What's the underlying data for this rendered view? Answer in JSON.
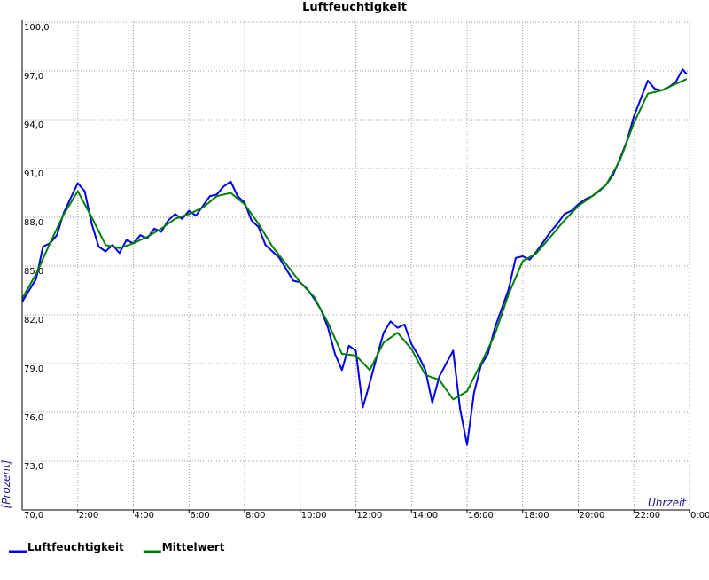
{
  "chart_data": {
    "type": "line",
    "title": "Luftfeuchtigkeit",
    "y_label": "[Prozent]",
    "x_label": "Uhrzeit",
    "xlim": [
      0,
      24
    ],
    "xticks": [
      {
        "value": 2,
        "label": "2:00"
      },
      {
        "value": 4,
        "label": "4:00"
      },
      {
        "value": 6,
        "label": "6:00"
      },
      {
        "value": 8,
        "label": "8:00"
      },
      {
        "value": 10,
        "label": "10:00"
      },
      {
        "value": 12,
        "label": "12:00"
      },
      {
        "value": 14,
        "label": "14:00"
      },
      {
        "value": 16,
        "label": "16:00"
      },
      {
        "value": 18,
        "label": "18:00"
      },
      {
        "value": 20,
        "label": "20:00"
      },
      {
        "value": 22,
        "label": "22:00"
      },
      {
        "value": 24,
        "label": "0:00"
      }
    ],
    "ylim": [
      70,
      100
    ],
    "yticks": [
      {
        "value": 70,
        "label": "70,0"
      },
      {
        "value": 73,
        "label": "73,0"
      },
      {
        "value": 76,
        "label": "76,0"
      },
      {
        "value": 79,
        "label": "79,0"
      },
      {
        "value": 82,
        "label": "82,0"
      },
      {
        "value": 85,
        "label": "85,0"
      },
      {
        "value": 88,
        "label": "88,0"
      },
      {
        "value": 91,
        "label": "91,0"
      },
      {
        "value": 94,
        "label": "94,0"
      },
      {
        "value": 97,
        "label": "97,0"
      },
      {
        "value": 100,
        "label": "100,0"
      }
    ],
    "grid": true,
    "legend": "bottom",
    "series": [
      {
        "name": "Luftfeuchtigkeit",
        "color": "#0000ee",
        "x": [
          0,
          0.25,
          0.5,
          0.75,
          1,
          1.25,
          1.5,
          1.75,
          2,
          2.25,
          2.5,
          2.75,
          3,
          3.25,
          3.5,
          3.75,
          4,
          4.25,
          4.5,
          4.75,
          5,
          5.25,
          5.5,
          5.75,
          6,
          6.25,
          6.5,
          6.75,
          7,
          7.25,
          7.5,
          7.75,
          8,
          8.25,
          8.5,
          8.75,
          9,
          9.25,
          9.5,
          9.75,
          10,
          10.25,
          10.5,
          10.75,
          11,
          11.25,
          11.5,
          11.75,
          12,
          12.25,
          12.5,
          12.75,
          13,
          13.25,
          13.5,
          13.75,
          14,
          14.25,
          14.5,
          14.75,
          15,
          15.25,
          15.5,
          15.75,
          16,
          16.25,
          16.5,
          16.75,
          17,
          17.25,
          17.5,
          17.75,
          18,
          18.25,
          18.5,
          18.75,
          19,
          19.25,
          19.5,
          19.75,
          20,
          20.25,
          20.5,
          20.75,
          21,
          21.25,
          21.5,
          21.75,
          22,
          22.25,
          22.5,
          22.75,
          23,
          23.25,
          23.5,
          23.75,
          23.9
        ],
        "values": [
          82.8,
          83.5,
          84.2,
          86.2,
          86.4,
          86.9,
          88.3,
          89.2,
          90.1,
          89.6,
          87.6,
          86.2,
          85.9,
          86.3,
          85.8,
          86.6,
          86.4,
          86.9,
          86.7,
          87.3,
          87.1,
          87.8,
          88.2,
          87.9,
          88.4,
          88.1,
          88.7,
          89.3,
          89.4,
          89.9,
          90.2,
          89.3,
          88.9,
          87.8,
          87.4,
          86.3,
          85.9,
          85.5,
          84.8,
          84.1,
          84.0,
          83.6,
          83.0,
          82.3,
          81.2,
          79.6,
          78.6,
          80.1,
          79.8,
          76.3,
          77.8,
          79.4,
          80.9,
          81.6,
          81.2,
          81.4,
          80.2,
          79.5,
          78.6,
          76.6,
          78.2,
          79.0,
          79.8,
          76.2,
          74.0,
          77.2,
          78.9,
          79.6,
          81.2,
          82.4,
          83.6,
          85.5,
          85.6,
          85.4,
          85.9,
          86.5,
          87.1,
          87.6,
          88.2,
          88.4,
          88.8,
          89.1,
          89.3,
          89.6,
          90.0,
          90.6,
          91.6,
          92.7,
          94.2,
          95.3,
          96.4,
          95.9,
          95.8,
          96.0,
          96.3,
          97.1,
          96.8
        ]
      },
      {
        "name": "Mittelwert",
        "color": "#008000",
        "x": [
          0,
          0.5,
          1,
          1.5,
          2,
          2.5,
          3,
          3.5,
          4,
          4.5,
          5,
          5.5,
          6,
          6.5,
          7,
          7.5,
          8,
          8.5,
          9,
          9.5,
          10,
          10.5,
          11,
          11.5,
          12,
          12.5,
          13,
          13.5,
          14,
          14.5,
          15,
          15.5,
          16,
          16.5,
          17,
          17.5,
          18,
          18.5,
          19,
          19.5,
          20,
          20.5,
          21,
          21.5,
          22,
          22.5,
          23,
          23.5,
          23.9
        ],
        "values": [
          83.0,
          84.5,
          86.4,
          88.2,
          89.6,
          88.0,
          86.3,
          86.1,
          86.4,
          86.8,
          87.3,
          87.9,
          88.2,
          88.6,
          89.3,
          89.5,
          88.8,
          87.6,
          86.2,
          85.1,
          84.0,
          83.1,
          81.5,
          79.6,
          79.5,
          78.6,
          80.3,
          80.9,
          79.9,
          78.3,
          78.0,
          76.8,
          77.3,
          79.0,
          80.8,
          83.3,
          85.3,
          85.8,
          86.8,
          87.8,
          88.7,
          89.3,
          90.0,
          91.5,
          93.8,
          95.6,
          95.8,
          96.2,
          96.5
        ]
      }
    ]
  }
}
